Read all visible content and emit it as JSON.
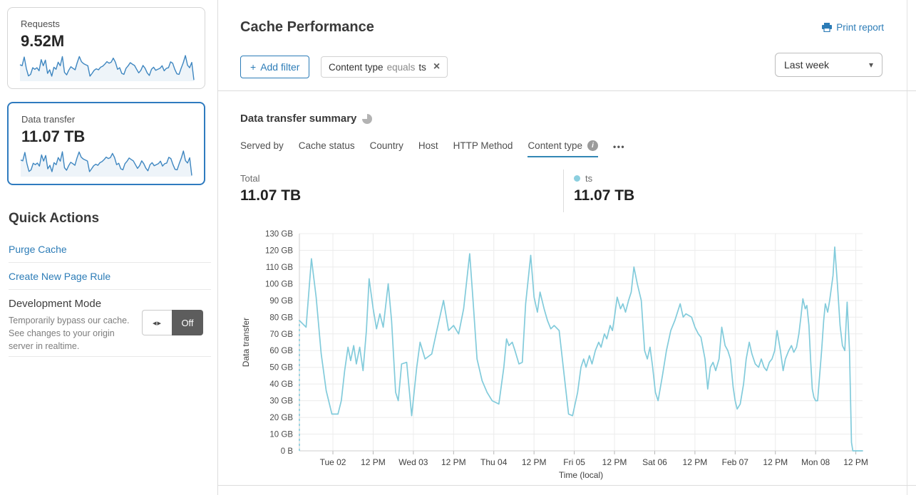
{
  "colors": {
    "accent": "#2c7cb7",
    "selected_card_border": "#2f7bbf",
    "chart_line": "#82cbdb",
    "spark_line": "#3e86c0",
    "spark_fill": "rgba(62,134,192,0.09)",
    "grid": "#ececec",
    "axis": "#cfcfcf",
    "tick": "#b5b5b5"
  },
  "icons": {
    "plus": "+",
    "close": "×",
    "caret": "▾",
    "toggle_arrows": "◂▸",
    "info": "i",
    "more": "•••",
    "printer": "printer-icon",
    "timer": "timer-icon",
    "legend_dot": "legend-dot-icon"
  },
  "sidebar": {
    "requests_card": {
      "label": "Requests",
      "value": "9.52M",
      "sparkline": [
        62,
        58,
        92,
        48,
        18,
        24,
        50,
        44,
        50,
        38,
        82,
        58,
        80,
        28,
        42,
        17,
        52,
        44,
        72,
        58,
        94,
        32,
        22,
        40,
        54,
        48,
        42,
        70,
        94,
        74,
        66,
        62,
        58,
        17,
        28,
        40,
        46,
        42,
        52,
        56,
        64,
        74,
        68,
        72,
        88,
        72,
        44,
        50,
        28,
        24,
        48,
        58,
        70,
        64,
        59,
        44,
        30,
        40,
        59,
        48,
        30,
        20,
        44,
        52,
        40,
        44,
        48,
        58,
        38,
        48,
        50,
        73,
        68,
        44,
        26,
        24,
        48,
        70,
        98,
        60,
        50,
        71,
        2
      ]
    },
    "data_transfer_card": {
      "label": "Data transfer",
      "value": "11.07 TB",
      "sparkline": [
        78,
        74,
        115,
        60,
        22,
        30,
        62,
        55,
        63,
        48,
        103,
        73,
        100,
        35,
        52,
        21,
        65,
        55,
        90,
        72,
        118,
        40,
        28,
        50,
        67,
        60,
        52,
        88,
        117,
        92,
        83,
        78,
        73,
        21,
        35,
        50,
        57,
        52,
        65,
        70,
        80,
        92,
        85,
        90,
        110,
        90,
        55,
        62,
        35,
        30,
        60,
        72,
        88,
        80,
        74,
        55,
        37,
        50,
        74,
        60,
        38,
        25,
        55,
        65,
        50,
        55,
        60,
        72,
        48,
        60,
        63,
        91,
        85,
        55,
        32,
        30,
        60,
        88,
        122,
        75,
        63,
        89,
        2
      ]
    },
    "quick_actions": {
      "title": "Quick Actions",
      "links": [
        "Purge Cache",
        "Create New Page Rule"
      ],
      "development_mode": {
        "title": "Development Mode",
        "description": "Temporarily bypass our cache. See changes to your origin server in realtime.",
        "toggle_state": "Off"
      }
    }
  },
  "header": {
    "title": "Cache Performance",
    "print_label": "Print report"
  },
  "filters": {
    "add_filter_label": "Add filter",
    "chip": {
      "field": "Content type",
      "operator": "equals",
      "value": "ts"
    },
    "time_range": "Last week"
  },
  "summary": {
    "title": "Data transfer summary",
    "tabs": [
      "Served by",
      "Cache status",
      "Country",
      "Host",
      "HTTP Method",
      "Content type"
    ],
    "total_label": "Total",
    "total_value": "11.07 TB",
    "series_label": "ts",
    "series_value": "11.07 TB"
  },
  "chart_data": {
    "type": "line",
    "title": "Data transfer summary",
    "xlabel": "Time (local)",
    "ylabel": "Data transfer",
    "ylim": [
      0,
      130
    ],
    "y_tick_labels": [
      "0 B",
      "10 GB",
      "20 GB",
      "30 GB",
      "40 GB",
      "50 GB",
      "60 GB",
      "70 GB",
      "80 GB",
      "90 GB",
      "100 GB",
      "110 GB",
      "120 GB",
      "130 GB"
    ],
    "x_range_hours": [
      0,
      168
    ],
    "x_ticks": [
      {
        "h": 10,
        "label": "Tue 02"
      },
      {
        "h": 22,
        "label": "12 PM"
      },
      {
        "h": 34,
        "label": "Wed 03"
      },
      {
        "h": 46,
        "label": "12 PM"
      },
      {
        "h": 58,
        "label": "Thu 04"
      },
      {
        "h": 70,
        "label": "12 PM"
      },
      {
        "h": 82,
        "label": "Fri 05"
      },
      {
        "h": 94,
        "label": "12 PM"
      },
      {
        "h": 106,
        "label": "Sat 06"
      },
      {
        "h": 118,
        "label": "12 PM"
      },
      {
        "h": 130,
        "label": "Feb 07"
      },
      {
        "h": 142,
        "label": "12 PM"
      },
      {
        "h": 154,
        "label": "Mon 08"
      },
      {
        "h": 166,
        "label": "12 PM"
      }
    ],
    "grid": true,
    "legend_position": "above-right",
    "dashed_start": true,
    "series": [
      {
        "name": "ts",
        "total": "11.07 TB",
        "unit": "GB",
        "points": [
          [
            0,
            78
          ],
          [
            1,
            76
          ],
          [
            2,
            74
          ],
          [
            3.6,
            115
          ],
          [
            5,
            92
          ],
          [
            6.5,
            58
          ],
          [
            8,
            36
          ],
          [
            9.7,
            22
          ],
          [
            11.5,
            22
          ],
          [
            12.5,
            30
          ],
          [
            13.5,
            48
          ],
          [
            14.5,
            62
          ],
          [
            15.3,
            54
          ],
          [
            16.2,
            63
          ],
          [
            17,
            52
          ],
          [
            18,
            62
          ],
          [
            19,
            48
          ],
          [
            20,
            72
          ],
          [
            20.8,
            103
          ],
          [
            22,
            85
          ],
          [
            23,
            73
          ],
          [
            24,
            82
          ],
          [
            25,
            74
          ],
          [
            26.5,
            100
          ],
          [
            27.5,
            78
          ],
          [
            28.7,
            35
          ],
          [
            29.5,
            30
          ],
          [
            30.5,
            52
          ],
          [
            32,
            53
          ],
          [
            33.5,
            21
          ],
          [
            35,
            50
          ],
          [
            36,
            65
          ],
          [
            37.5,
            55
          ],
          [
            39.5,
            58
          ],
          [
            41,
            72
          ],
          [
            43,
            90
          ],
          [
            44.5,
            72
          ],
          [
            46,
            75
          ],
          [
            47.5,
            70
          ],
          [
            49,
            85
          ],
          [
            50.8,
            118
          ],
          [
            51.8,
            90
          ],
          [
            53,
            55
          ],
          [
            54.5,
            42
          ],
          [
            56,
            35
          ],
          [
            57.5,
            30
          ],
          [
            59.5,
            28
          ],
          [
            61,
            50
          ],
          [
            61.8,
            67
          ],
          [
            62.5,
            63
          ],
          [
            63.5,
            65
          ],
          [
            64.3,
            60
          ],
          [
            65.5,
            52
          ],
          [
            66.5,
            53
          ],
          [
            67.5,
            88
          ],
          [
            69,
            117
          ],
          [
            70,
            92
          ],
          [
            71,
            83
          ],
          [
            71.8,
            95
          ],
          [
            73,
            85
          ],
          [
            74,
            78
          ],
          [
            75,
            73
          ],
          [
            76,
            75
          ],
          [
            77.5,
            72
          ],
          [
            79,
            45
          ],
          [
            80.3,
            22
          ],
          [
            81.5,
            21
          ],
          [
            83,
            35
          ],
          [
            84,
            50
          ],
          [
            84.8,
            55
          ],
          [
            85.5,
            50
          ],
          [
            86.5,
            57
          ],
          [
            87.3,
            52
          ],
          [
            88.3,
            60
          ],
          [
            89.3,
            65
          ],
          [
            90,
            62
          ],
          [
            91,
            70
          ],
          [
            91.7,
            67
          ],
          [
            92.7,
            75
          ],
          [
            93.4,
            72
          ],
          [
            94,
            80
          ],
          [
            94.8,
            92
          ],
          [
            95.8,
            85
          ],
          [
            96.5,
            88
          ],
          [
            97.3,
            83
          ],
          [
            98.2,
            90
          ],
          [
            99,
            95
          ],
          [
            99.8,
            110
          ],
          [
            100.8,
            100
          ],
          [
            102,
            90
          ],
          [
            103,
            60
          ],
          [
            103.8,
            55
          ],
          [
            104.6,
            62
          ],
          [
            105.4,
            50
          ],
          [
            106.2,
            35
          ],
          [
            107,
            30
          ],
          [
            108.3,
            45
          ],
          [
            109.5,
            60
          ],
          [
            110.8,
            72
          ],
          [
            112,
            78
          ],
          [
            113.6,
            88
          ],
          [
            114.5,
            80
          ],
          [
            115.3,
            82
          ],
          [
            116.2,
            81
          ],
          [
            117,
            80
          ],
          [
            118,
            74
          ],
          [
            119,
            70
          ],
          [
            119.8,
            68
          ],
          [
            121,
            55
          ],
          [
            121.8,
            37
          ],
          [
            122.6,
            50
          ],
          [
            123.4,
            53
          ],
          [
            124.2,
            48
          ],
          [
            125.2,
            55
          ],
          [
            126,
            74
          ],
          [
            127,
            63
          ],
          [
            127.8,
            60
          ],
          [
            128.6,
            55
          ],
          [
            129.4,
            38
          ],
          [
            130,
            30
          ],
          [
            130.6,
            25
          ],
          [
            131.5,
            28
          ],
          [
            132.5,
            40
          ],
          [
            133.3,
            55
          ],
          [
            134.2,
            65
          ],
          [
            135,
            58
          ],
          [
            136,
            52
          ],
          [
            137,
            50
          ],
          [
            137.8,
            55
          ],
          [
            138.6,
            50
          ],
          [
            139.4,
            48
          ],
          [
            140.2,
            53
          ],
          [
            141,
            55
          ],
          [
            141.8,
            60
          ],
          [
            142.5,
            72
          ],
          [
            143.5,
            60
          ],
          [
            144.3,
            48
          ],
          [
            145,
            55
          ],
          [
            146,
            60
          ],
          [
            146.8,
            63
          ],
          [
            147.5,
            59
          ],
          [
            148.3,
            62
          ],
          [
            149,
            70
          ],
          [
            149.6,
            80
          ],
          [
            150.2,
            91
          ],
          [
            150.9,
            85
          ],
          [
            151.4,
            87
          ],
          [
            152,
            75
          ],
          [
            152.5,
            55
          ],
          [
            153,
            37
          ],
          [
            153.5,
            32
          ],
          [
            154,
            30
          ],
          [
            154.6,
            30
          ],
          [
            155.2,
            45
          ],
          [
            155.8,
            60
          ],
          [
            156.4,
            78
          ],
          [
            156.9,
            88
          ],
          [
            157.6,
            83
          ],
          [
            158.2,
            90
          ],
          [
            159.2,
            105
          ],
          [
            159.7,
            122
          ],
          [
            160.5,
            100
          ],
          [
            161.3,
            75
          ],
          [
            162,
            63
          ],
          [
            162.7,
            60
          ],
          [
            163.4,
            89
          ],
          [
            164.1,
            60
          ],
          [
            164.7,
            5
          ],
          [
            165.1,
            0
          ],
          [
            168,
            0
          ]
        ]
      }
    ]
  }
}
